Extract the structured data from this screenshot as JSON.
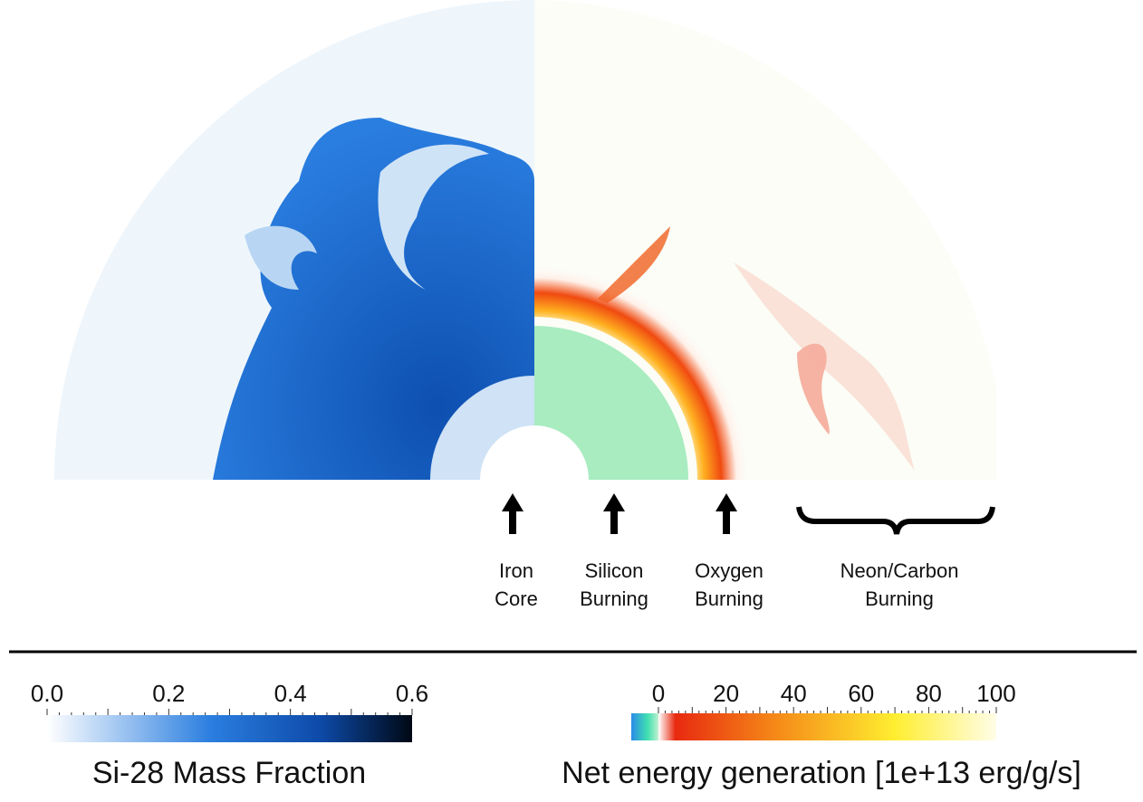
{
  "labels": [
    {
      "lines": [
        "Iron",
        "Core"
      ]
    },
    {
      "lines": [
        "Silicon",
        "Burning"
      ]
    },
    {
      "lines": [
        "Oxygen",
        "Burning"
      ]
    },
    {
      "lines": [
        "Neon/Carbon",
        "Burning"
      ]
    }
  ],
  "colorbars": [
    {
      "ticks": [
        "0.0",
        "0.2",
        "0.4",
        "0.6"
      ],
      "title": "Si-28 Mass Fraction"
    },
    {
      "ticks": [
        "0",
        "20",
        "40",
        "60",
        "80",
        "100"
      ],
      "title": "Net energy generation [1e+13 erg/g/s]"
    }
  ]
}
